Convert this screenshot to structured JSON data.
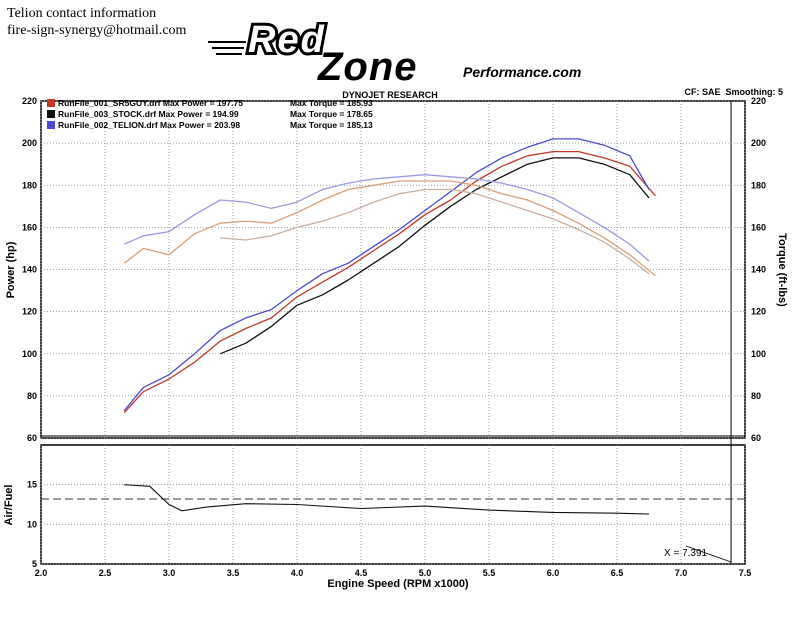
{
  "contact": {
    "line1": "Telion contact information",
    "line2": "fire-sign-synergy@hotmail.com"
  },
  "logo": {
    "word1": "Red",
    "word2": "Zone",
    "tagline": "Performance.com",
    "icon": "redzone-performance-logo"
  },
  "header": {
    "title": "DYNOJET RESEARCH",
    "settings": "CF: SAE  Smoothing: 5"
  },
  "legend": [
    {
      "text": "RunFile_001_SR5GUY.drf Max Power = 197.75",
      "torque": "Max Torque = 185.93",
      "color": "#c0392b"
    },
    {
      "text": "RunFile_003_STOCK.drf Max Power = 194.99",
      "torque": "Max Torque = 178.65",
      "color": "#111111"
    },
    {
      "text": "RunFile_002_TELION.drf Max Power = 203.98",
      "torque": "Max Torque = 185.13",
      "color": "#4a4ad0"
    }
  ],
  "cursor_readout": "X = 7.391",
  "chart_data": [
    {
      "type": "line",
      "title": "DYNOJET RESEARCH",
      "xlabel": "Engine Speed (RPM x1000)",
      "ylabel": "Power (hp)",
      "ylabel_right": "Torque (ft-lbs)",
      "xlim": [
        2.0,
        7.5
      ],
      "ylim": [
        60,
        220
      ],
      "ylim_right": [
        60,
        220
      ],
      "x_ticks": [
        "2.0",
        "2.5",
        "3.0",
        "3.5",
        "4.0",
        "4.5",
        "5.0",
        "5.5",
        "6.0",
        "6.5",
        "7.0",
        "7.5"
      ],
      "y_ticks": [
        "60",
        "80",
        "100",
        "120",
        "140",
        "160",
        "180",
        "200",
        "220"
      ],
      "grid": true,
      "legend_position": "top-left",
      "series": [
        {
          "name": "RunFile_001_SR5GUY.drf",
          "quantity": "power",
          "color": "#c0392b",
          "x": [
            2.65,
            2.8,
            3.0,
            3.2,
            3.4,
            3.6,
            3.8,
            4.0,
            4.2,
            4.4,
            4.6,
            4.8,
            5.0,
            5.2,
            5.4,
            5.6,
            5.8,
            6.0,
            6.2,
            6.4,
            6.6,
            6.8
          ],
          "y": [
            72,
            82,
            88,
            96,
            106,
            112,
            117,
            127,
            134,
            141,
            149,
            157,
            166,
            173,
            182,
            189,
            194,
            196,
            196,
            193,
            189,
            175
          ]
        },
        {
          "name": "RunFile_003_STOCK.drf",
          "quantity": "power",
          "color": "#111111",
          "x": [
            3.4,
            3.6,
            3.8,
            4.0,
            4.2,
            4.4,
            4.6,
            4.8,
            5.0,
            5.2,
            5.4,
            5.6,
            5.8,
            6.0,
            6.2,
            6.4,
            6.6,
            6.75
          ],
          "y": [
            100,
            105,
            113,
            123,
            128,
            135,
            143,
            151,
            161,
            170,
            178,
            184,
            190,
            193,
            193,
            190,
            185,
            174
          ]
        },
        {
          "name": "RunFile_002_TELION.drf",
          "quantity": "power",
          "color": "#4a4ad0",
          "x": [
            2.65,
            2.8,
            3.0,
            3.2,
            3.4,
            3.6,
            3.8,
            4.0,
            4.2,
            4.4,
            4.6,
            4.8,
            5.0,
            5.2,
            5.4,
            5.6,
            5.8,
            6.0,
            6.2,
            6.4,
            6.6,
            6.75
          ],
          "y": [
            73,
            84,
            90,
            100,
            111,
            117,
            121,
            130,
            138,
            143,
            151,
            159,
            168,
            177,
            186,
            193,
            198,
            202,
            202,
            199,
            194,
            178
          ]
        },
        {
          "name": "RunFile_001_SR5GUY.drf",
          "quantity": "torque",
          "color": "#d9a07a",
          "x": [
            2.65,
            2.8,
            3.0,
            3.2,
            3.4,
            3.6,
            3.8,
            4.0,
            4.2,
            4.4,
            4.6,
            4.8,
            5.0,
            5.2,
            5.4,
            5.6,
            5.8,
            6.0,
            6.2,
            6.4,
            6.6,
            6.8
          ],
          "y": [
            143,
            150,
            147,
            157,
            162,
            163,
            162,
            167,
            173,
            178,
            180,
            182,
            182,
            182,
            180,
            176,
            173,
            168,
            162,
            155,
            147,
            137
          ]
        },
        {
          "name": "RunFile_003_STOCK.drf",
          "quantity": "torque",
          "color": "#c8b0a0",
          "x": [
            3.4,
            3.6,
            3.8,
            4.0,
            4.2,
            4.4,
            4.6,
            4.8,
            5.0,
            5.2,
            5.4,
            5.6,
            5.8,
            6.0,
            6.2,
            6.4,
            6.6,
            6.75
          ],
          "y": [
            155,
            154,
            156,
            160,
            163,
            167,
            172,
            176,
            178,
            178,
            176,
            172,
            168,
            164,
            159,
            153,
            145,
            138
          ]
        },
        {
          "name": "RunFile_002_TELION.drf",
          "quantity": "torque",
          "color": "#9a9ae0",
          "x": [
            2.65,
            2.8,
            3.0,
            3.2,
            3.4,
            3.6,
            3.8,
            4.0,
            4.2,
            4.4,
            4.6,
            4.8,
            5.0,
            5.2,
            5.4,
            5.6,
            5.8,
            6.0,
            6.2,
            6.4,
            6.6,
            6.75
          ],
          "y": [
            152,
            156,
            158,
            166,
            173,
            172,
            169,
            172,
            178,
            181,
            183,
            184,
            185,
            184,
            183,
            181,
            178,
            174,
            167,
            160,
            152,
            144
          ]
        }
      ]
    },
    {
      "type": "line",
      "xlabel": "Engine Speed (RPM x1000)",
      "ylabel": "Air/Fuel",
      "xlim": [
        2.0,
        7.5
      ],
      "ylim": [
        5,
        20
      ],
      "y_ticks": [
        "5",
        "10",
        "15"
      ],
      "grid": true,
      "reference_line": 13.2,
      "series": [
        {
          "name": "Air/Fuel",
          "color": "#111111",
          "x": [
            2.65,
            2.85,
            3.0,
            3.1,
            3.3,
            3.6,
            4.0,
            4.5,
            5.0,
            5.5,
            6.0,
            6.5,
            6.75
          ],
          "y": [
            15.0,
            14.8,
            12.5,
            11.7,
            12.2,
            12.6,
            12.5,
            12.0,
            12.3,
            11.8,
            11.5,
            11.4,
            11.3
          ]
        }
      ]
    }
  ]
}
